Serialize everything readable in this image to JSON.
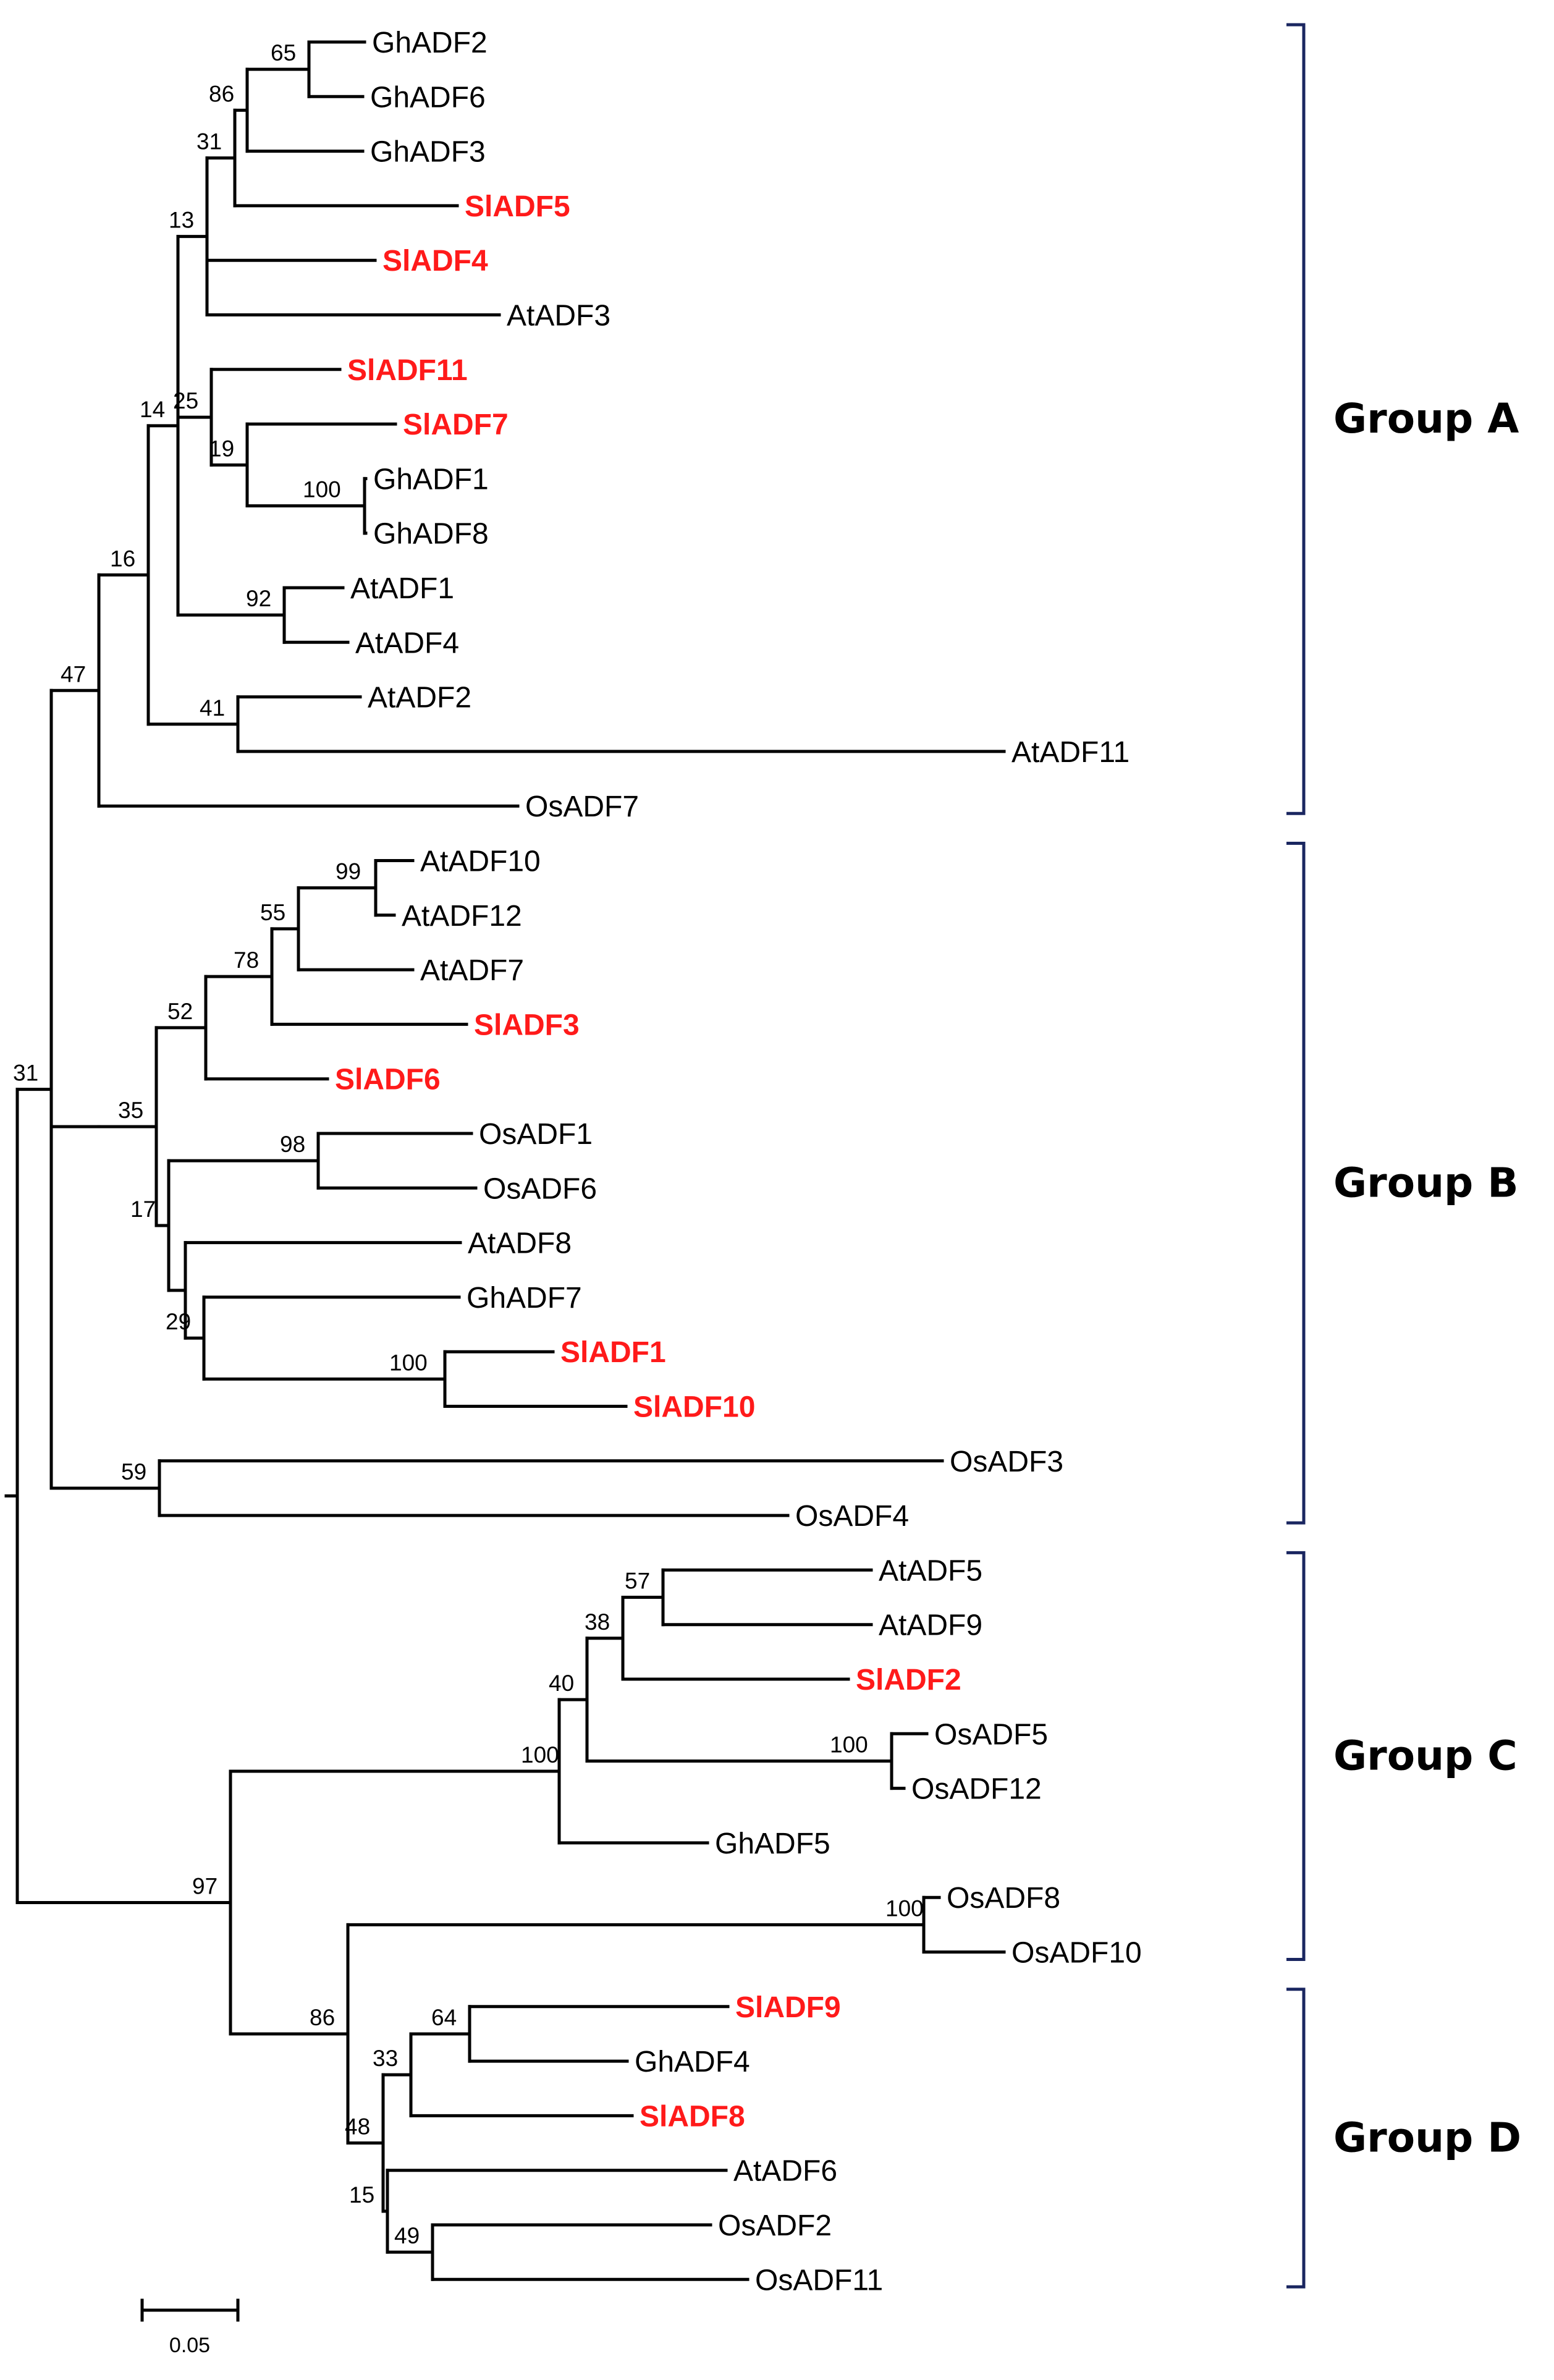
{
  "colors": {
    "highlight": "#ff1a1a",
    "default": "#000000",
    "bracket": "#1a2660"
  },
  "tree": {
    "id": "root",
    "children": [
      {
        "id": "AB",
        "boot": "31",
        "children": [
          {
            "id": "Aint",
            "boot": "47",
            "children": [
              {
                "id": "Acore",
                "boot": "16",
                "children": [
                  {
                    "id": "A14",
                    "boot": "14",
                    "children": [
                      {
                        "id": "A13",
                        "boot": "13",
                        "children": [
                          {
                            "id": "A31",
                            "boot": "31",
                            "children": [
                              {
                                "id": "A86",
                                "boot": "86",
                                "children": [
                                  {
                                    "id": "A65",
                                    "boot": "65",
                                    "children": [
                                      {
                                        "leaf": "GhADF2"
                                      },
                                      {
                                        "leaf": "GhADF6"
                                      }
                                    ]
                                  },
                                  {
                                    "leaf": "GhADF3"
                                  }
                                ]
                              },
                              {
                                "leaf": "SlADF5"
                              }
                            ]
                          },
                          {
                            "leaf": "SlADF4"
                          },
                          {
                            "leaf": "AtADF3"
                          }
                        ]
                      },
                      {
                        "id": "A25",
                        "boot": "25",
                        "children": [
                          {
                            "leaf": "SlADF11"
                          },
                          {
                            "id": "A19",
                            "boot": "19",
                            "children": [
                              {
                                "leaf": "SlADF7"
                              },
                              {
                                "id": "A100",
                                "boot": "100",
                                "children": [
                                  {
                                    "leaf": "GhADF1"
                                  },
                                  {
                                    "leaf": "GhADF8"
                                  }
                                ]
                              }
                            ]
                          }
                        ]
                      },
                      {
                        "id": "A92",
                        "boot": "92",
                        "children": [
                          {
                            "leaf": "AtADF1"
                          },
                          {
                            "leaf": "AtADF4"
                          }
                        ]
                      }
                    ]
                  },
                  {
                    "id": "A41",
                    "boot": "41",
                    "children": [
                      {
                        "leaf": "AtADF2"
                      },
                      {
                        "leaf": "AtADF11"
                      }
                    ]
                  }
                ]
              },
              {
                "leaf": "OsADF7"
              }
            ]
          },
          {
            "id": "Bcore",
            "boot": "",
            "children": [
              {
                "id": "B35",
                "boot": "35",
                "children": [
                  {
                    "id": "B52",
                    "boot": "52",
                    "children": [
                      {
                        "id": "B78",
                        "boot": "78",
                        "children": [
                          {
                            "id": "B55",
                            "boot": "55",
                            "children": [
                              {
                                "id": "B99",
                                "boot": "99",
                                "children": [
                                  {
                                    "leaf": "AtADF10"
                                  },
                                  {
                                    "leaf": "AtADF12"
                                  }
                                ]
                              },
                              {
                                "leaf": "AtADF7"
                              }
                            ]
                          },
                          {
                            "leaf": "SlADF3"
                          }
                        ]
                      },
                      {
                        "leaf": "SlADF6"
                      }
                    ]
                  },
                  {
                    "id": "B17",
                    "boot": "17",
                    "children": [
                      {
                        "id": "B98",
                        "boot": "98",
                        "children": [
                          {
                            "leaf": "OsADF1"
                          },
                          {
                            "leaf": "OsADF6"
                          }
                        ]
                      },
                      {
                        "id": "B17b",
                        "boot": "",
                        "children": [
                          {
                            "leaf": "AtADF8"
                          },
                          {
                            "id": "B29",
                            "boot": "29",
                            "children": [
                              {
                                "leaf": "GhADF7"
                              },
                              {
                                "id": "B100",
                                "boot": "100",
                                "children": [
                                  {
                                    "leaf": "SlADF1"
                                  },
                                  {
                                    "leaf": "SlADF10"
                                  }
                                ]
                              }
                            ]
                          }
                        ]
                      }
                    ]
                  }
                ]
              }
            ]
          },
          {
            "id": "B59",
            "boot": "59",
            "children": [
              {
                "leaf": "OsADF3"
              },
              {
                "leaf": "OsADF4"
              }
            ]
          }
        ]
      },
      {
        "id": "CD",
        "boot": "97",
        "children": [
          {
            "id": "C100",
            "boot": "100",
            "children": [
              {
                "id": "C40",
                "boot": "40",
                "children": [
                  {
                    "id": "C38",
                    "boot": "38",
                    "children": [
                      {
                        "id": "C57",
                        "boot": "57",
                        "children": [
                          {
                            "leaf": "AtADF5"
                          },
                          {
                            "leaf": "AtADF9"
                          }
                        ]
                      },
                      {
                        "leaf": "SlADF2"
                      }
                    ]
                  },
                  {
                    "id": "C100b",
                    "boot": "100",
                    "children": [
                      {
                        "leaf": "OsADF5"
                      },
                      {
                        "leaf": "OsADF12"
                      }
                    ]
                  }
                ]
              },
              {
                "leaf": "GhADF5"
              }
            ]
          },
          {
            "id": "D86",
            "boot": "86",
            "children": [
              {
                "id": "D100",
                "boot": "100",
                "children": [
                  {
                    "leaf": "OsADF8"
                  },
                  {
                    "leaf": "OsADF10"
                  }
                ]
              },
              {
                "id": "D48",
                "boot": "48",
                "children": [
                  {
                    "id": "D33",
                    "boot": "33",
                    "children": [
                      {
                        "id": "D64",
                        "boot": "64",
                        "children": [
                          {
                            "leaf": "SlADF9"
                          },
                          {
                            "leaf": "GhADF4"
                          }
                        ]
                      },
                      {
                        "leaf": "SlADF8"
                      }
                    ]
                  },
                  {
                    "id": "D15",
                    "boot": "15",
                    "children": [
                      {
                        "leaf": "AtADF6"
                      },
                      {
                        "id": "D49",
                        "boot": "49",
                        "children": [
                          {
                            "leaf": "OsADF2"
                          },
                          {
                            "leaf": "OsADF11"
                          }
                        ]
                      }
                    ]
                  }
                ]
              }
            ]
          }
        ]
      }
    ]
  },
  "highlighted_taxa": [
    "SlADF1",
    "SlADF2",
    "SlADF3",
    "SlADF4",
    "SlADF5",
    "SlADF6",
    "SlADF7",
    "SlADF8",
    "SlADF9",
    "SlADF10",
    "SlADF11"
  ],
  "groups": [
    {
      "label": "Group A",
      "first": "GhADF2",
      "last": "OsADF7"
    },
    {
      "label": "Group B",
      "first": "AtADF10",
      "last": "OsADF4"
    },
    {
      "label": "Group C",
      "first": "AtADF5",
      "last": "OsADF10"
    },
    {
      "label": "Group D",
      "first": "SlADF9",
      "last": "OsADF11"
    }
  ],
  "scale_bar": {
    "value": 0.05,
    "label": "0.05"
  }
}
